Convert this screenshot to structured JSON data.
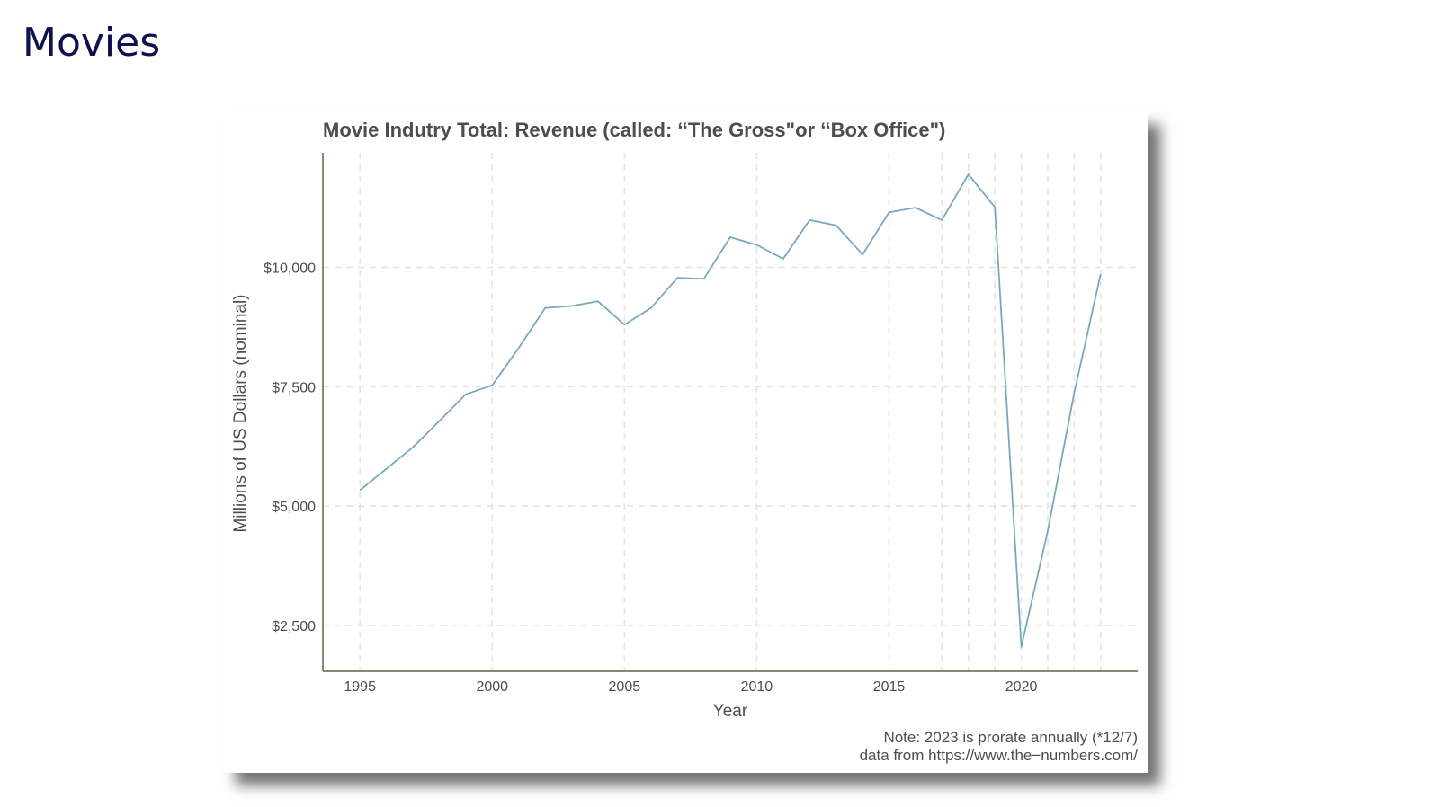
{
  "slide": {
    "title": "Movies"
  },
  "chart_data": {
    "type": "line",
    "title": "Movie Indutry Total: Revenue (called: ‘‘The Gross\"or ‘‘Box Office\")",
    "xlabel": "Year",
    "ylabel": "Millions of US Dollars (nominal)",
    "xlim": [
      1993.6,
      2024.4
    ],
    "ylim": [
      1540,
      12400
    ],
    "x_ticks": [
      1995,
      2000,
      2005,
      2010,
      2015,
      2020
    ],
    "x_tick_labels": [
      "1995",
      "2000",
      "2005",
      "2010",
      "2015",
      "2020"
    ],
    "y_ticks": [
      2500,
      5000,
      7500,
      10000
    ],
    "y_tick_labels": [
      "$2,500",
      "$5,000",
      "$7,500",
      "$10,000"
    ],
    "grid": true,
    "extra_vertical_gridlines": [
      2017,
      2018,
      2019,
      2021,
      2022,
      2023
    ],
    "line_color": "#76a9c0",
    "series": [
      {
        "x": [
          1995,
          1996,
          1997,
          1998,
          1999,
          2000,
          2001,
          2002,
          2003,
          2004,
          2005,
          2006,
          2007,
          2008,
          2009,
          2010,
          2011,
          2012,
          2013,
          2014,
          2015,
          2016,
          2017,
          2018,
          2019,
          2020,
          2021,
          2022,
          2023
        ],
        "values": [
          5330,
          5780,
          6230,
          6780,
          7340,
          7530,
          8310,
          9150,
          9190,
          9290,
          8800,
          9150,
          9780,
          9760,
          10630,
          10470,
          10180,
          10990,
          10880,
          10270,
          11150,
          11250,
          10990,
          11950,
          11260,
          2050,
          4480,
          7370,
          9860
        ]
      }
    ],
    "note_lines": [
      "Note: 2023 is prorate annually (*12/7)",
      "data from https://www.the−numbers.com/"
    ]
  }
}
